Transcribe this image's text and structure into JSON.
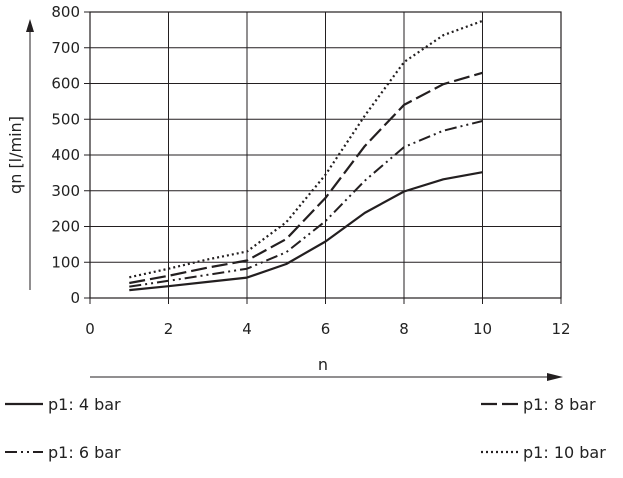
{
  "colors": {
    "ink": "#231f20",
    "grid": "#231f20",
    "background": "#ffffff"
  },
  "chart_data": {
    "type": "line",
    "title": "",
    "xlabel": "n",
    "ylabel": "qn [l/min]",
    "xlim": [
      0,
      12
    ],
    "ylim": [
      0,
      800
    ],
    "x_ticks": [
      "0",
      "2",
      "4",
      "6",
      "8",
      "10",
      "12"
    ],
    "y_ticks": [
      "0",
      "100",
      "200",
      "300",
      "400",
      "500",
      "600",
      "700",
      "800"
    ],
    "grid": true,
    "legend_position": "bottom",
    "series": [
      {
        "name": "p1: 4 bar",
        "dash": "solid",
        "x": [
          1,
          2,
          3,
          4,
          5,
          6,
          7,
          8,
          9,
          10
        ],
        "values": [
          22,
          33,
          45,
          57,
          95,
          158,
          238,
          298,
          332,
          352
        ]
      },
      {
        "name": "p1: 8 bar",
        "dash": "dashed",
        "x": [
          1,
          2,
          3,
          4,
          5,
          6,
          7,
          8,
          9,
          10
        ],
        "values": [
          42,
          62,
          85,
          105,
          165,
          280,
          425,
          540,
          598,
          630
        ]
      },
      {
        "name": "p1: 6 bar",
        "dash": "dash-dot-dot",
        "x": [
          1,
          2,
          3,
          4,
          5,
          6,
          7,
          8,
          9,
          10
        ],
        "values": [
          32,
          48,
          65,
          82,
          128,
          215,
          328,
          422,
          468,
          495
        ]
      },
      {
        "name": "p1: 10 bar",
        "dash": "dotted",
        "x": [
          1,
          2,
          3,
          4,
          5,
          6,
          7,
          8,
          9,
          10
        ],
        "values": [
          58,
          82,
          108,
          130,
          212,
          345,
          510,
          660,
          735,
          775
        ]
      }
    ]
  }
}
